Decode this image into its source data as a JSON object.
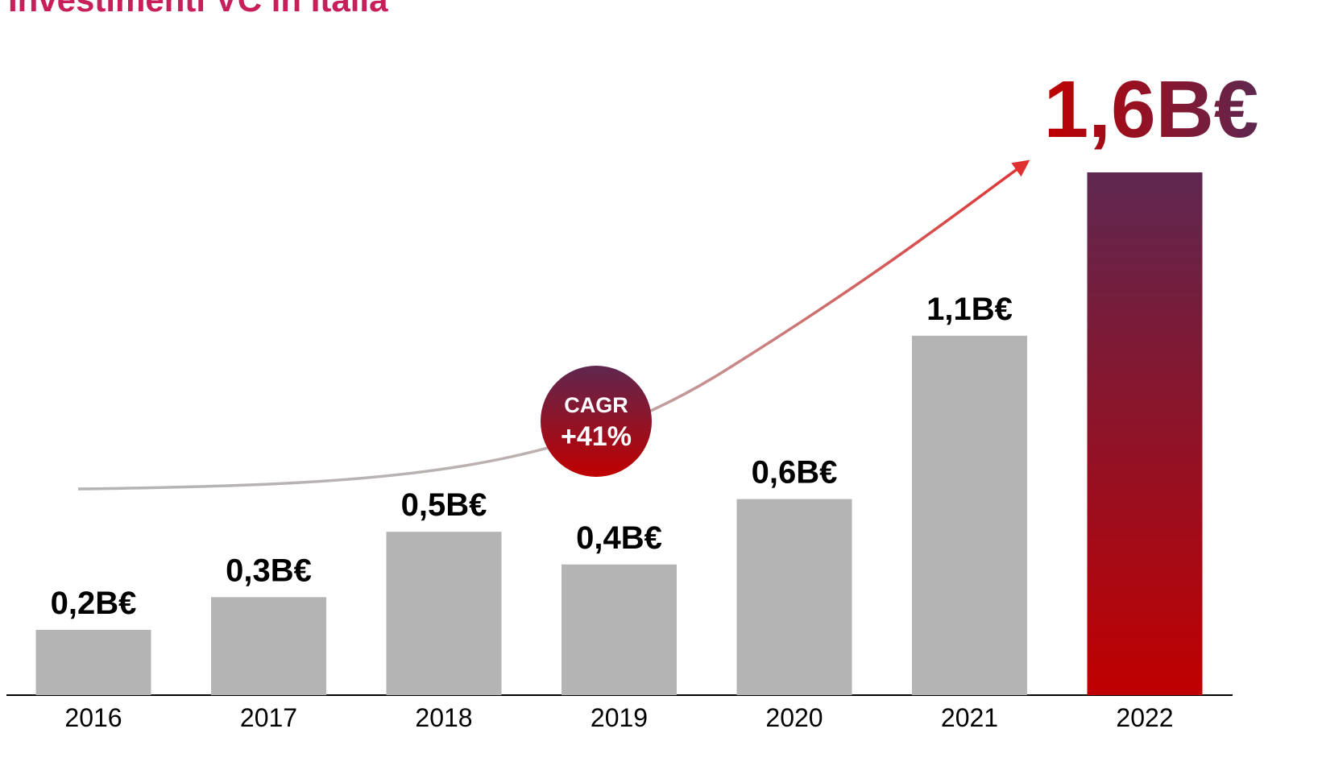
{
  "chart_data": {
    "type": "bar",
    "title": "Investimenti VC in Italia",
    "categories": [
      "2016",
      "2017",
      "2018",
      "2019",
      "2020",
      "2021",
      "2022"
    ],
    "values": [
      0.2,
      0.3,
      0.5,
      0.4,
      0.6,
      1.1,
      1.6
    ],
    "value_labels": [
      "0,2B€",
      "0,3B€",
      "0,5B€",
      "0,4B€",
      "0,6B€",
      "1,1B€",
      "1,6B€"
    ],
    "color": "#b4b4b4",
    "highlight": {
      "index": 6,
      "gradient": [
        "#5e2750",
        "#c00000"
      ]
    },
    "annotations": [
      "CAGR",
      "+41%"
    ]
  }
}
